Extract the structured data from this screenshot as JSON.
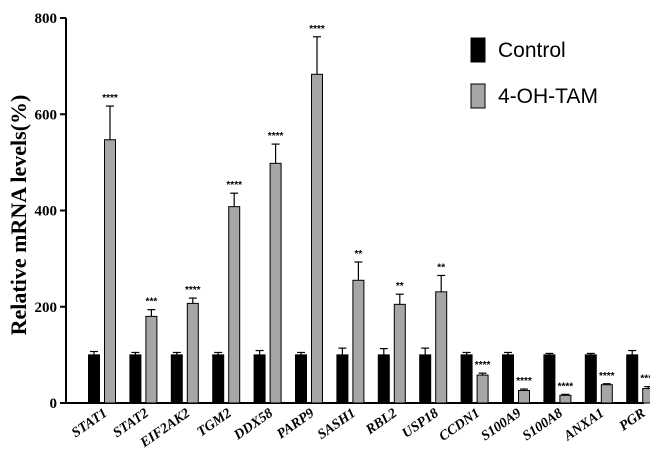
{
  "chart_data": {
    "type": "bar",
    "title": "",
    "xlabel": "",
    "ylabel": "Relative mRNA levels(%)",
    "ylim": [
      0,
      800
    ],
    "yticks": [
      0,
      200,
      400,
      600,
      800
    ],
    "grid": false,
    "legend_position": "top-right",
    "colors": {
      "Control": "#000000",
      "4-OH-TAM": "#a6a6a6"
    },
    "categories": [
      "STAT1",
      "STAT2",
      "EIF2AK2",
      "TGM2",
      "DDX58",
      "PARP9",
      "SASH1",
      "RBL2",
      "USP18",
      "CCDN1",
      "S100A9",
      "S100A8",
      "ANXA1",
      "PGR"
    ],
    "series": [
      {
        "name": "Control",
        "values": [
          100,
          100,
          100,
          100,
          100,
          100,
          100,
          100,
          100,
          100,
          100,
          100,
          100,
          100
        ],
        "errors": [
          7,
          5,
          5,
          5,
          9,
          5,
          14,
          13,
          14,
          5,
          5,
          3,
          3,
          9
        ]
      },
      {
        "name": "4-OH-TAM",
        "values": [
          547,
          180,
          207,
          408,
          498,
          683,
          255,
          205,
          231,
          58,
          26,
          16,
          38,
          30
        ],
        "errors": [
          70,
          14,
          11,
          28,
          40,
          78,
          38,
          21,
          34,
          4,
          3,
          2,
          2,
          4
        ]
      }
    ],
    "significance": [
      "****",
      "***",
      "****",
      "****",
      "****",
      "****",
      "**",
      "**",
      "**",
      "****",
      "****",
      "****",
      "****",
      "****"
    ]
  }
}
